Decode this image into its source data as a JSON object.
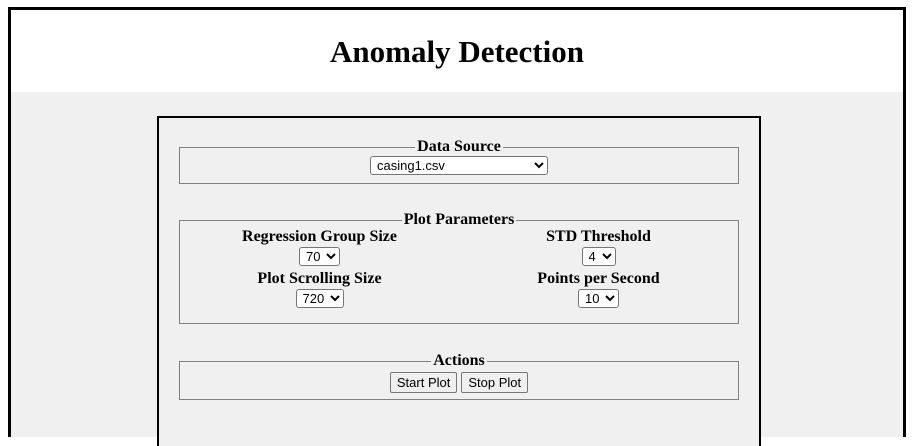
{
  "header": {
    "title": "Anomaly Detection"
  },
  "data_source": {
    "legend": "Data Source",
    "selected": "casing1.csv"
  },
  "plot_parameters": {
    "legend": "Plot Parameters",
    "regression_group_size": {
      "label": "Regression Group Size",
      "value": "70"
    },
    "std_threshold": {
      "label": "STD Threshold",
      "value": "4"
    },
    "plot_scrolling_size": {
      "label": "Plot Scrolling Size",
      "value": "720"
    },
    "points_per_second": {
      "label": "Points per Second",
      "value": "10"
    }
  },
  "actions": {
    "legend": "Actions",
    "start_label": "Start Plot",
    "stop_label": "Stop Plot"
  }
}
